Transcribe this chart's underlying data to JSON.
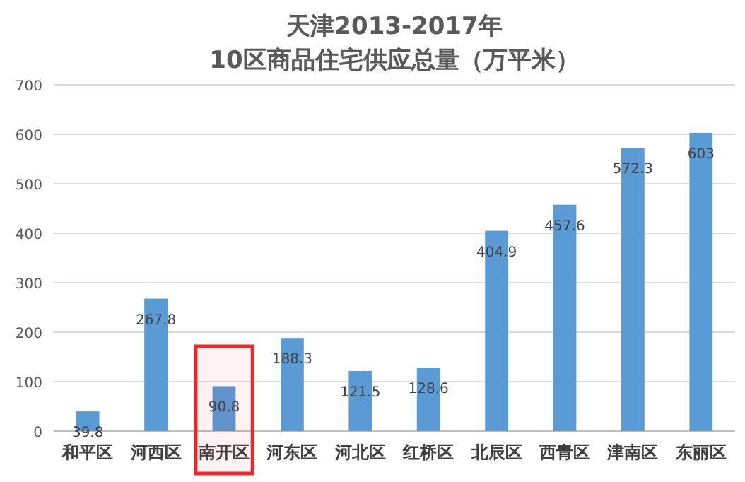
{
  "chart_data": {
    "type": "bar",
    "title": "天津2013-2017年",
    "subtitle": "10区商品住宅供应总量（万平米）",
    "categories": [
      "和平区",
      "河西区",
      "南开区",
      "河东区",
      "河北区",
      "红桥区",
      "北辰区",
      "西青区",
      "津南区",
      "东丽区"
    ],
    "values": [
      39.8,
      267.8,
      90.8,
      188.3,
      121.5,
      128.6,
      404.9,
      457.6,
      572.3,
      603
    ],
    "color": "#5b9bd5",
    "ylim": [
      0,
      700
    ],
    "yticks": [
      0,
      100,
      200,
      300,
      400,
      500,
      600,
      700
    ],
    "grid": "y",
    "data_labels": true,
    "bands": [
      {
        "axis": "x",
        "from": "南开区",
        "to": "南开区",
        "color": "#e8282b"
      }
    ]
  }
}
